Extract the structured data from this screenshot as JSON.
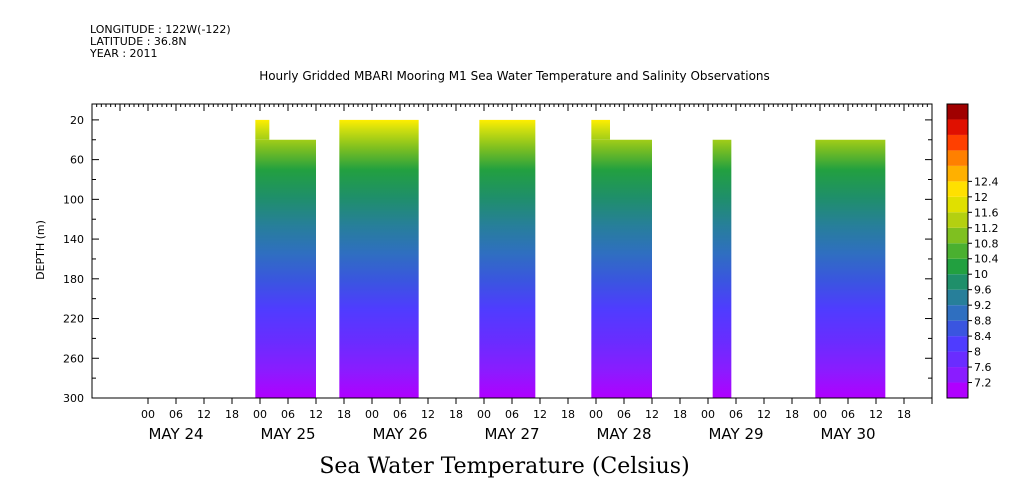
{
  "header": {
    "longitude": "LONGITUDE : 122W(-122)",
    "latitude": "LATITUDE : 36.8N",
    "year": "YEAR : 2011"
  },
  "chart_data": {
    "type": "heatmap",
    "title": "Hourly Gridded MBARI Mooring M1 Sea Water Temperature and Salinity Observations",
    "colorbar_label": "Sea Water Temperature (Celsius)",
    "ylabel": "DEPTH (m)",
    "y_reversed": true,
    "ylim": [
      300,
      4
    ],
    "y_ticks": [
      20,
      60,
      100,
      140,
      180,
      220,
      260,
      300
    ],
    "x_range_hours": [
      -12,
      168
    ],
    "x_hour_ticks": [
      "00",
      "06",
      "12",
      "18",
      "00",
      "06",
      "12",
      "18",
      "00",
      "06",
      "12",
      "18",
      "00",
      "06",
      "12",
      "18",
      "00",
      "06",
      "12",
      "18",
      "00",
      "06",
      "12",
      "18",
      "00",
      "06",
      "12",
      "18"
    ],
    "days": [
      "MAY 24",
      "MAY 25",
      "MAY 26",
      "MAY 27",
      "MAY 28",
      "MAY 29",
      "MAY 30"
    ],
    "colorbar_levels": [
      7.2,
      7.6,
      8,
      8.4,
      8.8,
      9.2,
      9.6,
      10,
      10.4,
      10.8,
      11.2,
      11.6,
      12,
      12.4
    ],
    "colorbar_colors": [
      "#b000ff",
      "#8a1cff",
      "#6a2cff",
      "#4f3cff",
      "#3a55e0",
      "#2f6fc0",
      "#277f9a",
      "#1f8f6a",
      "#22a040",
      "#4ab030",
      "#7fc020",
      "#b4d010",
      "#e0e000",
      "#ffe000",
      "#ffb000",
      "#ff8000",
      "#ff4000",
      "#e01000",
      "#a00000"
    ],
    "data_blocks": [
      {
        "start_hour": 23,
        "end_hour": 36,
        "top_depth": 40,
        "notch_end_hour": 26,
        "notch_top_depth": 20
      },
      {
        "start_hour": 41,
        "end_hour": 58,
        "top_depth": 20
      },
      {
        "start_hour": 71,
        "end_hour": 83,
        "top_depth": 20
      },
      {
        "start_hour": 95,
        "end_hour": 108,
        "top_depth": 40,
        "notch_end_hour": 99,
        "notch_top_depth": 20
      },
      {
        "start_hour": 121,
        "end_hour": 125,
        "top_depth": 40
      },
      {
        "start_hour": 143,
        "end_hour": 158,
        "top_depth": 40
      }
    ]
  }
}
